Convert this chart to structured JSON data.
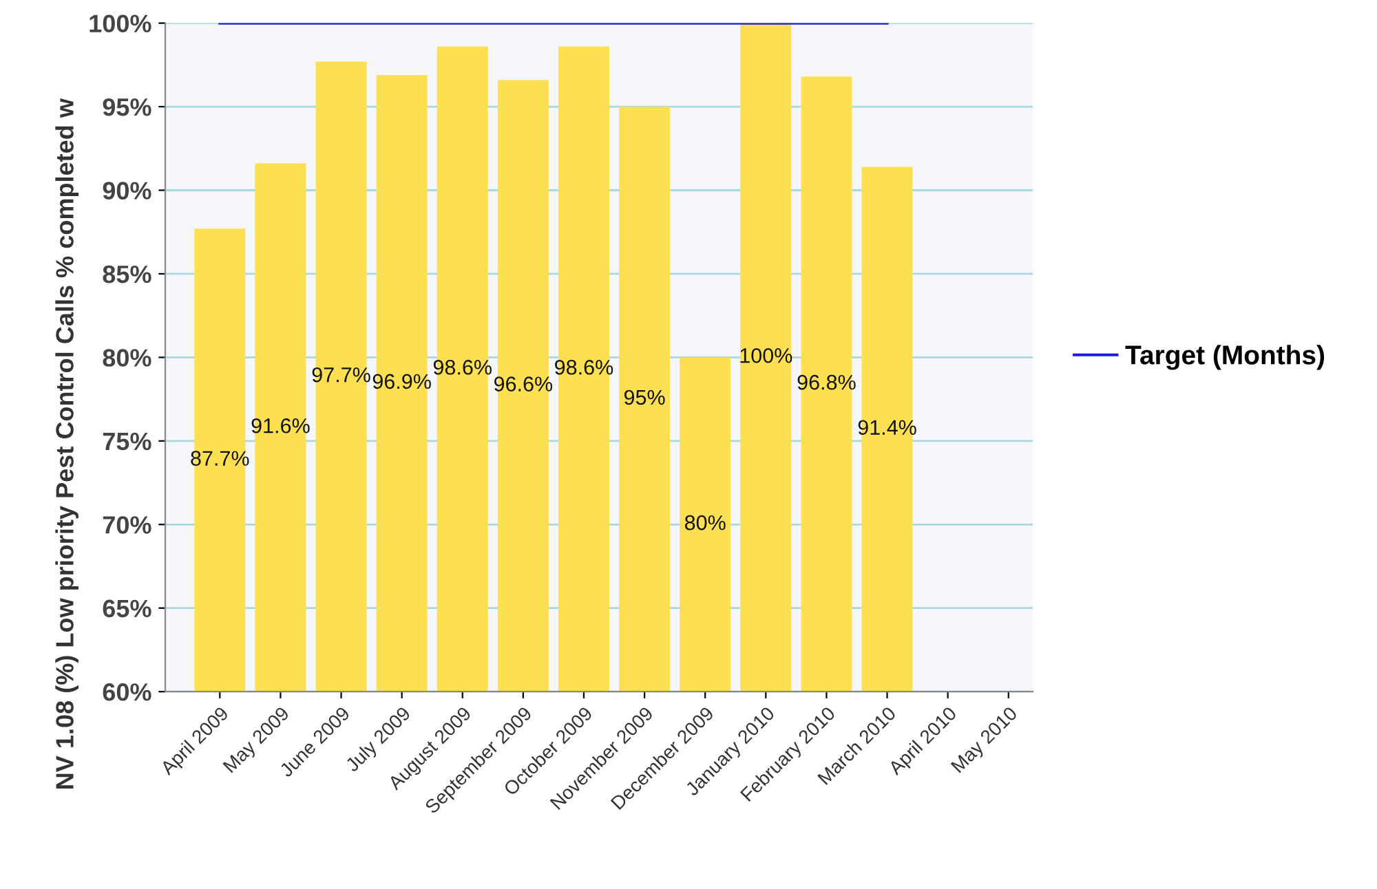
{
  "chart_data": {
    "type": "bar",
    "ylabel": "NV 1.08 (%) Low priority Pest Control Calls % completed w",
    "categories": [
      "April 2009",
      "May 2009",
      "June 2009",
      "July 2009",
      "August 2009",
      "September 2009",
      "October 2009",
      "November 2009",
      "December 2009",
      "January 2010",
      "February 2010",
      "March 2010",
      "April 2010",
      "May 2010"
    ],
    "series": [
      {
        "color": "#fce052",
        "values": [
          87.7,
          91.6,
          97.7,
          96.9,
          98.6,
          96.6,
          98.6,
          95,
          80,
          100,
          96.8,
          91.4,
          null,
          null
        ],
        "value_labels": [
          "87.7%",
          "91.6%",
          "97.7%",
          "96.9%",
          "98.6%",
          "96.6%",
          "98.6%",
          "95%",
          "80%",
          "100%",
          "96.8%",
          "91.4%",
          null,
          null
        ]
      },
      {
        "type": "line",
        "name": "Target (Months)",
        "color": "#1a1adc",
        "values": [
          100,
          100,
          100,
          100,
          100,
          100,
          100,
          100,
          100,
          100,
          100,
          100,
          null,
          null
        ]
      }
    ],
    "ylim": [
      60,
      100
    ],
    "yticks": [
      {
        "value": 60,
        "label": "60%"
      },
      {
        "value": 65,
        "label": "65%"
      },
      {
        "value": 70,
        "label": "70%"
      },
      {
        "value": 75,
        "label": "75%"
      },
      {
        "value": 80,
        "label": "80%"
      },
      {
        "value": 85,
        "label": "85%"
      },
      {
        "value": 90,
        "label": "90%"
      },
      {
        "value": 95,
        "label": "95%"
      },
      {
        "value": 100,
        "label": "100%"
      }
    ],
    "grid": "y",
    "legend": "right",
    "marker": "none",
    "line_style": "solid"
  }
}
